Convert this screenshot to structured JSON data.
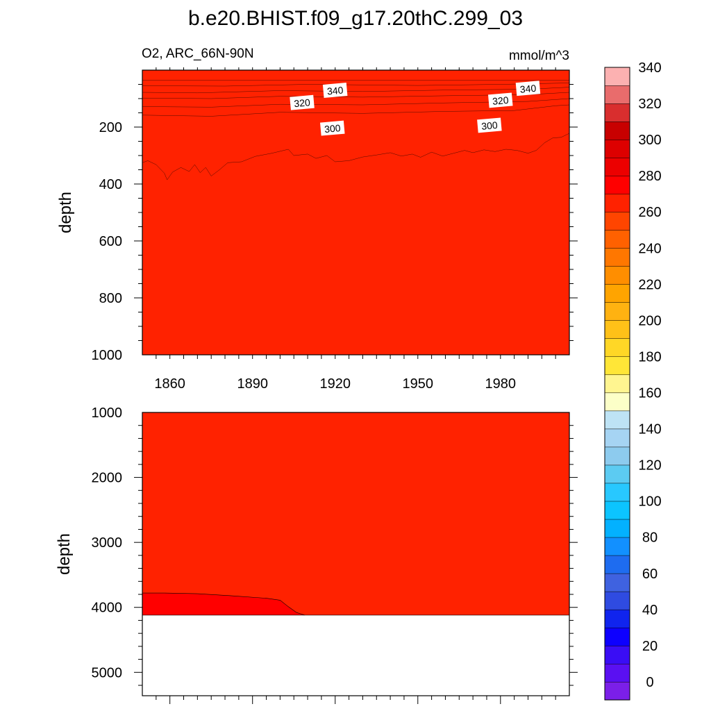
{
  "figure": {
    "title": "b.e20.BHIST.f09_g17.20thC.299_03",
    "variable_region": "O2, ARC_66N-90N",
    "units": "mmol/m^3"
  },
  "chart_data": [
    {
      "type": "heatmap",
      "panel": "upper",
      "ylabel": "depth",
      "x_ticks": [
        "1860",
        "1890",
        "1920",
        "1950",
        "1980"
      ],
      "y_ticks": [
        "200",
        "400",
        "600",
        "800",
        "1000"
      ],
      "xlim": [
        1850,
        2005
      ],
      "ylim": [
        0,
        1000
      ],
      "y_inverted": true,
      "contour_labels": [
        {
          "text": "340",
          "x": 1920,
          "y": 72
        },
        {
          "text": "320",
          "x": 1908,
          "y": 115
        },
        {
          "text": "300",
          "x": 1919,
          "y": 205
        },
        {
          "text": "340",
          "x": 1990,
          "y": 65
        },
        {
          "text": "320",
          "x": 1980,
          "y": 107
        },
        {
          "text": "300",
          "x": 1976,
          "y": 195
        }
      ],
      "layers": [
        {
          "fill": "#fcb1b1",
          "bottom": [
            {
              "x": 1850,
              "y": 36
            },
            {
              "x": 2005,
              "y": 36
            }
          ]
        },
        {
          "fill": "#e96c6c",
          "bottom": [
            {
              "x": 1850,
              "y": 55
            },
            {
              "x": 1880,
              "y": 56
            },
            {
              "x": 1910,
              "y": 50
            },
            {
              "x": 1950,
              "y": 54
            },
            {
              "x": 1980,
              "y": 50
            },
            {
              "x": 2005,
              "y": 45
            }
          ]
        },
        {
          "fill": "#d92e2e",
          "bottom": [
            {
              "x": 1850,
              "y": 78
            },
            {
              "x": 1870,
              "y": 80
            },
            {
              "x": 1900,
              "y": 72
            },
            {
              "x": 1930,
              "y": 75
            },
            {
              "x": 1960,
              "y": 70
            },
            {
              "x": 1990,
              "y": 67
            },
            {
              "x": 2005,
              "y": 60
            }
          ]
        },
        {
          "fill": "#c80000",
          "bottom": [
            {
              "x": 1850,
              "y": 98
            },
            {
              "x": 1875,
              "y": 100
            },
            {
              "x": 1900,
              "y": 92
            },
            {
              "x": 1930,
              "y": 95
            },
            {
              "x": 1960,
              "y": 90
            },
            {
              "x": 1990,
              "y": 86
            },
            {
              "x": 2005,
              "y": 78
            }
          ]
        },
        {
          "fill": "#dd0000",
          "bottom": [
            {
              "x": 1850,
              "y": 128
            },
            {
              "x": 1875,
              "y": 130
            },
            {
              "x": 1900,
              "y": 120
            },
            {
              "x": 1930,
              "y": 122
            },
            {
              "x": 1960,
              "y": 115
            },
            {
              "x": 1990,
              "y": 110
            },
            {
              "x": 2005,
              "y": 100
            }
          ]
        },
        {
          "fill": "#ec0000",
          "bottom": [
            {
              "x": 1850,
              "y": 158
            },
            {
              "x": 1875,
              "y": 162
            },
            {
              "x": 1900,
              "y": 148
            },
            {
              "x": 1930,
              "y": 152
            },
            {
              "x": 1960,
              "y": 145
            },
            {
              "x": 1985,
              "y": 142
            },
            {
              "x": 2000,
              "y": 125
            },
            {
              "x": 2005,
              "y": 122
            }
          ]
        },
        {
          "fill": "#ff0000",
          "bottom": [
            {
              "x": 1850,
              "y": 325
            },
            {
              "x": 1852,
              "y": 318
            },
            {
              "x": 1855,
              "y": 332
            },
            {
              "x": 1858,
              "y": 362
            },
            {
              "x": 1859,
              "y": 385
            },
            {
              "x": 1861,
              "y": 358
            },
            {
              "x": 1864,
              "y": 342
            },
            {
              "x": 1867,
              "y": 356
            },
            {
              "x": 1869,
              "y": 332
            },
            {
              "x": 1871,
              "y": 360
            },
            {
              "x": 1873,
              "y": 342
            },
            {
              "x": 1875,
              "y": 372
            },
            {
              "x": 1878,
              "y": 350
            },
            {
              "x": 1881,
              "y": 325
            },
            {
              "x": 1886,
              "y": 322
            },
            {
              "x": 1891,
              "y": 303
            },
            {
              "x": 1897,
              "y": 292
            },
            {
              "x": 1903,
              "y": 278
            },
            {
              "x": 1905,
              "y": 300
            },
            {
              "x": 1910,
              "y": 295
            },
            {
              "x": 1913,
              "y": 310
            },
            {
              "x": 1917,
              "y": 300
            },
            {
              "x": 1920,
              "y": 322
            },
            {
              "x": 1925,
              "y": 318
            },
            {
              "x": 1930,
              "y": 305
            },
            {
              "x": 1935,
              "y": 298
            },
            {
              "x": 1940,
              "y": 290
            },
            {
              "x": 1944,
              "y": 302
            },
            {
              "x": 1948,
              "y": 295
            },
            {
              "x": 1951,
              "y": 306
            },
            {
              "x": 1955,
              "y": 288
            },
            {
              "x": 1959,
              "y": 302
            },
            {
              "x": 1963,
              "y": 292
            },
            {
              "x": 1967,
              "y": 282
            },
            {
              "x": 1970,
              "y": 290
            },
            {
              "x": 1974,
              "y": 280
            },
            {
              "x": 1978,
              "y": 286
            },
            {
              "x": 1982,
              "y": 278
            },
            {
              "x": 1986,
              "y": 282
            },
            {
              "x": 1990,
              "y": 292
            },
            {
              "x": 1993,
              "y": 282
            },
            {
              "x": 1996,
              "y": 255
            },
            {
              "x": 1999,
              "y": 238
            },
            {
              "x": 2002,
              "y": 236
            },
            {
              "x": 2005,
              "y": 222
            }
          ]
        },
        {
          "fill": "#ff2200",
          "bottom": [
            {
              "x": 1850,
              "y": 1000
            },
            {
              "x": 2005,
              "y": 1000
            }
          ]
        }
      ]
    },
    {
      "type": "heatmap",
      "panel": "lower",
      "ylabel": "depth",
      "y_ticks": [
        "1000",
        "2000",
        "3000",
        "4000",
        "5000"
      ],
      "xlim": [
        1850,
        2005
      ],
      "ylim": [
        1000,
        5360
      ],
      "y_inverted": true,
      "base_fill": "#ff2200",
      "masked_below_depth": 4120,
      "regions": [
        {
          "fill": "#ff0000",
          "top": [
            {
              "x": 1850,
              "y": 3780
            },
            {
              "x": 1858,
              "y": 3780
            },
            {
              "x": 1870,
              "y": 3790
            },
            {
              "x": 1882,
              "y": 3820
            },
            {
              "x": 1895,
              "y": 3860
            },
            {
              "x": 1900,
              "y": 3890
            },
            {
              "x": 1903,
              "y": 3990
            },
            {
              "x": 1906,
              "y": 4080
            },
            {
              "x": 1909,
              "y": 4120
            }
          ]
        }
      ]
    }
  ],
  "colorbar": {
    "labels": [
      "0",
      "20",
      "40",
      "60",
      "80",
      "100",
      "120",
      "140",
      "160",
      "180",
      "200",
      "220",
      "240",
      "260",
      "280",
      "300",
      "320",
      "340"
    ],
    "colors": [
      "#7b1fe8",
      "#5a10f2",
      "#3a0df5",
      "#0d00ff",
      "#1024ee",
      "#2f4be1",
      "#3f62e0",
      "#1e6cf0",
      "#1290ff",
      "#03b1ff",
      "#0cc4ff",
      "#28c8ff",
      "#5ccbf2",
      "#8dcbee",
      "#a6d4f3",
      "#bee3f5",
      "#fcffc8",
      "#fff590",
      "#ffe637",
      "#ffd726",
      "#ffc118",
      "#ffb211",
      "#ffa400",
      "#ff8e00",
      "#ff7700",
      "#ff6100",
      "#ff4500",
      "#ff2200",
      "#ff0000",
      "#ec0000",
      "#dd0000",
      "#c80000",
      "#d92e2e",
      "#e96c6c",
      "#fcb1b1"
    ]
  }
}
